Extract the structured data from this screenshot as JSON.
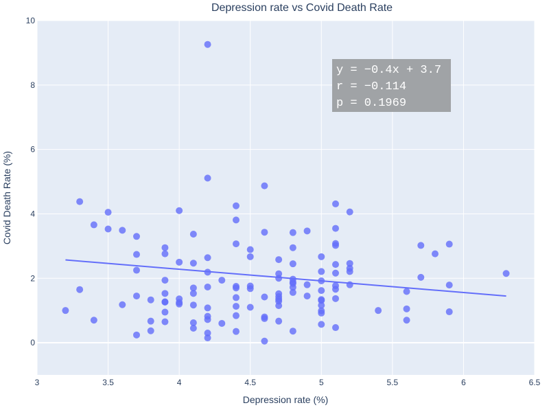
{
  "chart_data": {
    "type": "scatter",
    "title": "Depression rate vs Covid Death Rate",
    "xlabel": "Depression rate (%)",
    "ylabel": "Covid Death Rate (%)",
    "xlim": [
      3,
      6.5
    ],
    "ylim": [
      -1,
      10
    ],
    "xticks": [
      3,
      3.5,
      4,
      4.5,
      5,
      5.5,
      6,
      6.5
    ],
    "xtick_labels": [
      "3",
      "3.5",
      "4",
      "4.5",
      "5",
      "5.5",
      "6",
      "6.5"
    ],
    "yticks": [
      0,
      2,
      4,
      6,
      8,
      10
    ],
    "ytick_labels": [
      "0",
      "2",
      "4",
      "6",
      "8",
      "10"
    ],
    "grid": true,
    "colors": {
      "points": "#636efa",
      "plot_bg": "#e5ecf6",
      "text": "#2a3f5f",
      "annotation_bg": "#a0a3a6"
    },
    "points": [
      [
        3.2,
        1.0
      ],
      [
        3.3,
        4.38
      ],
      [
        3.3,
        1.65
      ],
      [
        3.4,
        3.66
      ],
      [
        3.4,
        0.7
      ],
      [
        3.5,
        4.05
      ],
      [
        3.5,
        3.53
      ],
      [
        3.6,
        3.49
      ],
      [
        3.6,
        1.18
      ],
      [
        3.7,
        3.3
      ],
      [
        3.7,
        2.74
      ],
      [
        3.7,
        2.25
      ],
      [
        3.7,
        1.45
      ],
      [
        3.7,
        0.24
      ],
      [
        3.8,
        1.33
      ],
      [
        3.8,
        0.67
      ],
      [
        3.8,
        0.37
      ],
      [
        3.9,
        2.95
      ],
      [
        3.9,
        2.76
      ],
      [
        3.9,
        1.94
      ],
      [
        3.9,
        1.53
      ],
      [
        3.9,
        1.27
      ],
      [
        3.9,
        1.26
      ],
      [
        3.9,
        0.95
      ],
      [
        3.9,
        0.65
      ],
      [
        4.0,
        4.1
      ],
      [
        4.0,
        2.5
      ],
      [
        4.0,
        1.36
      ],
      [
        4.0,
        1.25
      ],
      [
        4.0,
        1.2
      ],
      [
        4.1,
        3.37
      ],
      [
        4.1,
        2.47
      ],
      [
        4.1,
        1.7
      ],
      [
        4.1,
        1.53
      ],
      [
        4.1,
        1.17
      ],
      [
        4.1,
        0.62
      ],
      [
        4.1,
        0.45
      ],
      [
        4.2,
        9.26
      ],
      [
        4.2,
        5.11
      ],
      [
        4.2,
        2.64
      ],
      [
        4.2,
        2.19
      ],
      [
        4.2,
        1.73
      ],
      [
        4.2,
        1.08
      ],
      [
        4.2,
        0.82
      ],
      [
        4.2,
        0.72
      ],
      [
        4.2,
        0.3
      ],
      [
        4.2,
        0.15
      ],
      [
        4.3,
        1.94
      ],
      [
        4.3,
        0.6
      ],
      [
        4.4,
        4.25
      ],
      [
        4.4,
        3.81
      ],
      [
        4.4,
        3.07
      ],
      [
        4.4,
        1.75
      ],
      [
        4.4,
        1.7
      ],
      [
        4.4,
        1.4
      ],
      [
        4.4,
        1.13
      ],
      [
        4.4,
        0.84
      ],
      [
        4.4,
        0.35
      ],
      [
        4.5,
        2.89
      ],
      [
        4.5,
        2.67
      ],
      [
        4.5,
        1.76
      ],
      [
        4.5,
        1.68
      ],
      [
        4.5,
        1.1
      ],
      [
        4.6,
        4.87
      ],
      [
        4.6,
        3.43
      ],
      [
        4.6,
        1.42
      ],
      [
        4.6,
        0.8
      ],
      [
        4.6,
        0.75
      ],
      [
        4.6,
        0.05
      ],
      [
        4.7,
        2.58
      ],
      [
        4.7,
        2.14
      ],
      [
        4.7,
        2.0
      ],
      [
        4.7,
        1.52
      ],
      [
        4.7,
        1.43
      ],
      [
        4.7,
        1.35
      ],
      [
        4.7,
        1.29
      ],
      [
        4.7,
        1.15
      ],
      [
        4.7,
        0.67
      ],
      [
        4.8,
        3.42
      ],
      [
        4.8,
        2.95
      ],
      [
        4.8,
        2.45
      ],
      [
        4.8,
        1.97
      ],
      [
        4.8,
        1.88
      ],
      [
        4.8,
        1.84
      ],
      [
        4.8,
        1.72
      ],
      [
        4.8,
        1.56
      ],
      [
        4.8,
        0.36
      ],
      [
        4.9,
        3.47
      ],
      [
        4.9,
        1.8
      ],
      [
        4.9,
        1.45
      ],
      [
        5.0,
        2.67
      ],
      [
        5.0,
        2.21
      ],
      [
        5.0,
        1.92
      ],
      [
        5.0,
        1.62
      ],
      [
        5.0,
        1.34
      ],
      [
        5.0,
        1.31
      ],
      [
        5.0,
        1.16
      ],
      [
        5.0,
        0.99
      ],
      [
        5.0,
        0.92
      ],
      [
        5.0,
        0.57
      ],
      [
        5.1,
        4.31
      ],
      [
        5.1,
        3.55
      ],
      [
        5.1,
        3.08
      ],
      [
        5.1,
        3.02
      ],
      [
        5.1,
        2.43
      ],
      [
        5.1,
        2.16
      ],
      [
        5.1,
        1.77
      ],
      [
        5.1,
        1.66
      ],
      [
        5.1,
        1.37
      ],
      [
        5.1,
        0.47
      ],
      [
        5.2,
        4.06
      ],
      [
        5.2,
        2.46
      ],
      [
        5.2,
        2.31
      ],
      [
        5.2,
        2.21
      ],
      [
        5.2,
        1.8
      ],
      [
        5.4,
        1.0
      ],
      [
        5.6,
        1.59
      ],
      [
        5.6,
        1.05
      ],
      [
        5.6,
        0.7
      ],
      [
        5.7,
        3.02
      ],
      [
        5.7,
        2.03
      ],
      [
        5.8,
        2.76
      ],
      [
        5.9,
        3.06
      ],
      [
        5.9,
        1.79
      ],
      [
        5.9,
        0.96
      ],
      [
        6.3,
        2.15
      ]
    ],
    "trendline": {
      "x": [
        3.2,
        6.3
      ],
      "y": [
        2.57,
        1.45
      ]
    },
    "annotation": {
      "lines": [
        "y = −0.4x + 3.7",
        "r = −0.114",
        "p = 0.1969"
      ]
    }
  }
}
